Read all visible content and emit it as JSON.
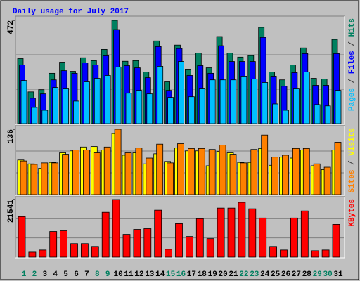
{
  "chart_data": [
    {
      "type": "bar",
      "title": "Daily usage for July 2017",
      "legend_separator": " / ",
      "series": [
        {
          "name": "Hits",
          "color": "#008060",
          "values": [
            297,
            145,
            155,
            230,
            281,
            239,
            301,
            288,
            339,
            472,
            285,
            288,
            236,
            378,
            191,
            359,
            249,
            323,
            255,
            398,
            323,
            304,
            311,
            440,
            236,
            200,
            268,
            346,
            207,
            204,
            385
          ]
        },
        {
          "name": "Files",
          "color": "#0000ff",
          "values": [
            268,
            116,
            136,
            200,
            242,
            230,
            278,
            268,
            310,
            430,
            265,
            255,
            210,
            352,
            152,
            343,
            220,
            265,
            230,
            356,
            284,
            284,
            284,
            394,
            217,
            171,
            233,
            320,
            175,
            175,
            320
          ]
        },
        {
          "name": "Pages",
          "color": "#00c0ff",
          "values": [
            197,
            74,
            61,
            165,
            162,
            103,
            191,
            207,
            220,
            259,
            139,
            152,
            136,
            262,
            120,
            284,
            123,
            162,
            200,
            200,
            200,
            217,
            204,
            188,
            90,
            61,
            162,
            236,
            87,
            81,
            152
          ]
        }
      ],
      "ylim": [
        0,
        472
      ],
      "yticks": [
        472
      ],
      "grid_values": [
        157.3,
        314.7
      ]
    },
    {
      "type": "bar",
      "legend_separator": " / ",
      "series": [
        {
          "name": "Visits",
          "color": "#ffff00",
          "values": [
            72,
            64,
            55,
            67,
            87,
            91,
            99,
            100,
            93,
            127,
            82,
            87,
            64,
            85,
            69,
            97,
            91,
            91,
            60,
            90,
            87,
            67,
            67,
            96,
            61,
            78,
            76,
            93,
            60,
            52,
            93
          ]
        },
        {
          "name": "Sites",
          "color": "#ff8000",
          "values": [
            70,
            63,
            66,
            66,
            84,
            93,
            93,
            87,
            99,
            136,
            87,
            97,
            76,
            105,
            66,
            106,
            96,
            96,
            94,
            103,
            84,
            66,
            94,
            124,
            78,
            82,
            96,
            96,
            64,
            57,
            109
          ]
        }
      ],
      "ylim": [
        0,
        136
      ],
      "yticks": [
        136
      ],
      "grid_values": [
        45.3,
        90.7
      ]
    },
    {
      "type": "bar",
      "categories": [
        "1",
        "2",
        "3",
        "4",
        "5",
        "6",
        "7",
        "8",
        "9",
        "10",
        "11",
        "12",
        "13",
        "14",
        "15",
        "16",
        "17",
        "18",
        "19",
        "20",
        "21",
        "22",
        "23",
        "24",
        "25",
        "26",
        "27",
        "28",
        "29",
        "30",
        "31"
      ],
      "category_colors": [
        "#008060",
        "#008060",
        "#000000",
        "#000000",
        "#000000",
        "#000000",
        "#000000",
        "#008060",
        "#008060",
        "#000000",
        "#000000",
        "#000000",
        "#000000",
        "#000000",
        "#008060",
        "#008060",
        "#000000",
        "#000000",
        "#000000",
        "#000000",
        "#000000",
        "#008060",
        "#008060",
        "#000000",
        "#000000",
        "#000000",
        "#000000",
        "#000000",
        "#008060",
        "#008060",
        "#000000"
      ],
      "series": [
        {
          "name": "KBytes",
          "color": "#ff0000",
          "values": [
            15160,
            1860,
            2660,
            9580,
            9840,
            5050,
            5050,
            3990,
            16760,
            21541,
            8510,
            10370,
            10640,
            17560,
            2930,
            12500,
            7710,
            14360,
            6920,
            18350,
            18350,
            20480,
            18090,
            14630,
            3990,
            2660,
            14630,
            17290,
            2390,
            2660,
            12240
          ]
        }
      ],
      "ylim": [
        0,
        21541
      ],
      "yticks": [
        21541
      ],
      "grid_values": [
        7180,
        14361
      ]
    }
  ]
}
